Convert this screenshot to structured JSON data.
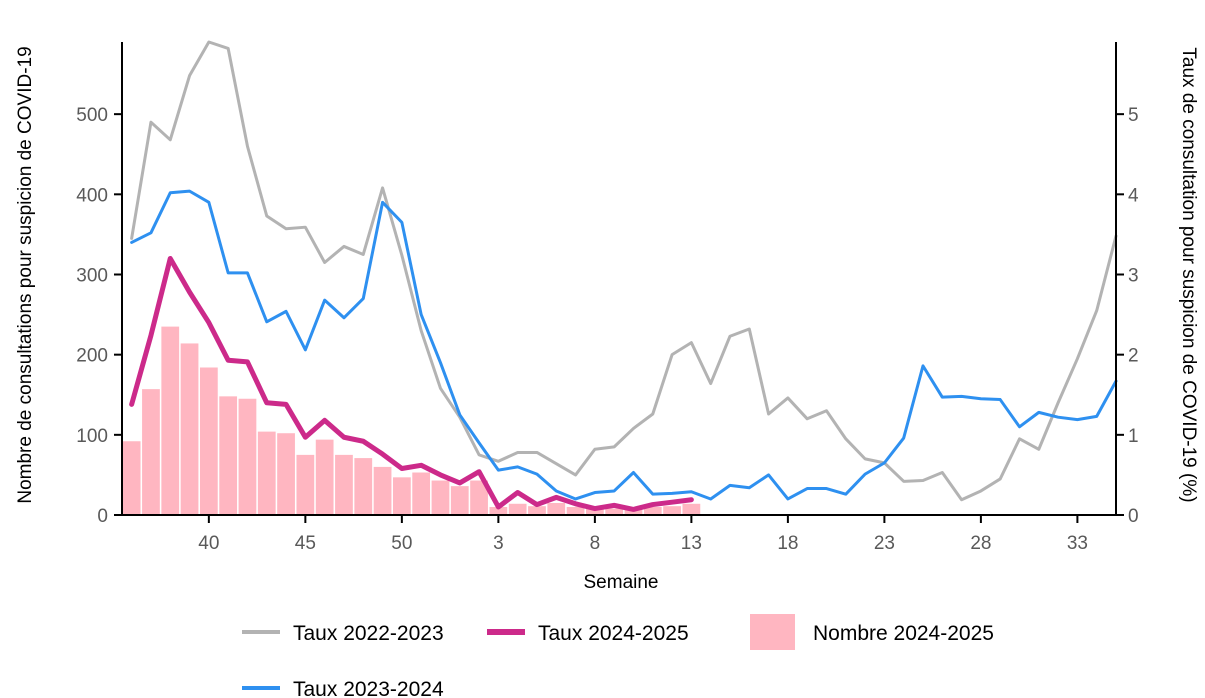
{
  "chart_data": {
    "type": "bar+line",
    "xlabel": "Semaine",
    "ylabel_left": "Nombre de consultations pour suspicion de COVID-19",
    "ylabel_right": "Taux de consultation pour suspicion de COVID-19 (%)",
    "x_weeks": [
      36,
      37,
      38,
      39,
      40,
      41,
      42,
      43,
      44,
      45,
      46,
      47,
      48,
      49,
      50,
      51,
      52,
      1,
      2,
      3,
      4,
      5,
      6,
      7,
      8,
      9,
      10,
      11,
      12,
      13,
      14,
      15,
      16,
      17,
      18,
      19,
      20,
      21,
      22,
      23,
      24,
      25,
      26,
      27,
      28,
      29,
      30,
      31,
      32,
      33,
      34,
      35
    ],
    "x_tick_labels": [
      "40",
      "45",
      "50",
      "3",
      "8",
      "13",
      "18",
      "23",
      "28",
      "33"
    ],
    "x_tick_index": [
      4,
      9,
      14,
      19,
      24,
      29,
      34,
      39,
      44,
      49
    ],
    "ylim_left": [
      0,
      590
    ],
    "yticks_left": [
      0,
      100,
      200,
      300,
      400,
      500
    ],
    "ylim_right": [
      0,
      5.9
    ],
    "yticks_right": [
      0,
      1,
      2,
      3,
      4,
      5
    ],
    "bars": {
      "name": "Nombre 2024-2025",
      "color": "#ffb6c1",
      "values": [
        92,
        157,
        235,
        214,
        184,
        148,
        145,
        104,
        102,
        75,
        94,
        75,
        71,
        60,
        47,
        53,
        43,
        36,
        43,
        10,
        14,
        11,
        15,
        10,
        8,
        8,
        8,
        10,
        11,
        14
      ]
    },
    "series": [
      {
        "name": "Taux 2022-2023",
        "color": "#b3b3b3",
        "axis": "right",
        "values": [
          3.45,
          4.9,
          4.68,
          5.48,
          5.9,
          5.82,
          4.6,
          3.73,
          3.57,
          3.59,
          3.15,
          3.35,
          3.25,
          4.08,
          3.24,
          2.3,
          1.58,
          1.22,
          0.75,
          0.67,
          0.78,
          0.78,
          0.64,
          0.5,
          0.82,
          0.85,
          1.08,
          1.26,
          2.0,
          2.15,
          1.64,
          2.23,
          2.32,
          1.26,
          1.46,
          1.2,
          1.3,
          0.95,
          0.7,
          0.65,
          0.42,
          0.43,
          0.53,
          0.19,
          0.3,
          0.45,
          0.95,
          0.82,
          1.4,
          1.95,
          2.55,
          3.48
        ]
      },
      {
        "name": "Taux 2023-2024",
        "color": "#2e90f0",
        "axis": "right",
        "values": [
          3.4,
          3.52,
          4.02,
          4.04,
          3.9,
          3.02,
          3.02,
          2.41,
          2.54,
          2.06,
          2.68,
          2.46,
          2.7,
          3.9,
          3.65,
          2.5,
          1.9,
          1.25,
          0.9,
          0.56,
          0.6,
          0.51,
          0.3,
          0.2,
          0.28,
          0.3,
          0.53,
          0.26,
          0.27,
          0.29,
          0.2,
          0.37,
          0.34,
          0.5,
          0.2,
          0.33,
          0.33,
          0.26,
          0.51,
          0.65,
          0.96,
          1.86,
          1.47,
          1.48,
          1.45,
          1.44,
          1.1,
          1.28,
          1.22,
          1.19,
          1.23,
          1.67
        ]
      },
      {
        "name": "Taux 2024-2025",
        "color": "#cc2a8a",
        "axis": "right",
        "values": [
          1.38,
          2.24,
          3.2,
          2.78,
          2.4,
          1.93,
          1.91,
          1.4,
          1.38,
          0.97,
          1.18,
          0.97,
          0.92,
          0.76,
          0.58,
          0.62,
          0.5,
          0.4,
          0.54,
          0.1,
          0.28,
          0.13,
          0.22,
          0.14,
          0.08,
          0.12,
          0.07,
          0.13,
          0.16,
          0.19
        ]
      }
    ],
    "legend": {
      "placement": "bottom",
      "items": [
        {
          "label": "Taux 2022-2023",
          "kind": "line",
          "color": "#b3b3b3"
        },
        {
          "label": "Taux 2024-2025",
          "kind": "line-thick",
          "color": "#cc2a8a"
        },
        {
          "label": "Nombre 2024-2025",
          "kind": "box",
          "color": "#ffb6c1"
        },
        {
          "label": "Taux 2023-2024",
          "kind": "line",
          "color": "#2e90f0"
        }
      ]
    },
    "grid": false
  }
}
